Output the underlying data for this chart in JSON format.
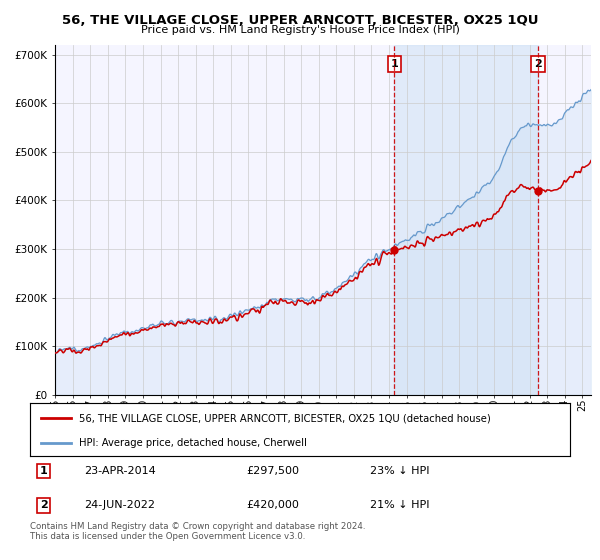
{
  "title": "56, THE VILLAGE CLOSE, UPPER ARNCOTT, BICESTER, OX25 1QU",
  "subtitle": "Price paid vs. HM Land Registry's House Price Index (HPI)",
  "hpi_color": "#6699cc",
  "hpi_fill_color": "#cce0f5",
  "property_color": "#cc0000",
  "marker_color": "#cc0000",
  "purchase1_year": 2014.31,
  "purchase1_price": 297500,
  "purchase2_year": 2022.48,
  "purchase2_price": 420000,
  "legend_property": "56, THE VILLAGE CLOSE, UPPER ARNCOTT, BICESTER, OX25 1QU (detached house)",
  "legend_hpi": "HPI: Average price, detached house, Cherwell",
  "copyright": "Contains HM Land Registry data © Crown copyright and database right 2024.\nThis data is licensed under the Open Government Licence v3.0.",
  "ylim": [
    0,
    720000
  ],
  "xmin": 1995,
  "xmax": 2025.5,
  "yticks": [
    0,
    100000,
    200000,
    300000,
    400000,
    500000,
    600000,
    700000
  ],
  "ytick_labels": [
    "£0",
    "£100K",
    "£200K",
    "£300K",
    "£400K",
    "£500K",
    "£600K",
    "£700K"
  ],
  "grid_color": "#cccccc",
  "background_color": "#ffffff",
  "plot_bg": "#f5f5ff"
}
